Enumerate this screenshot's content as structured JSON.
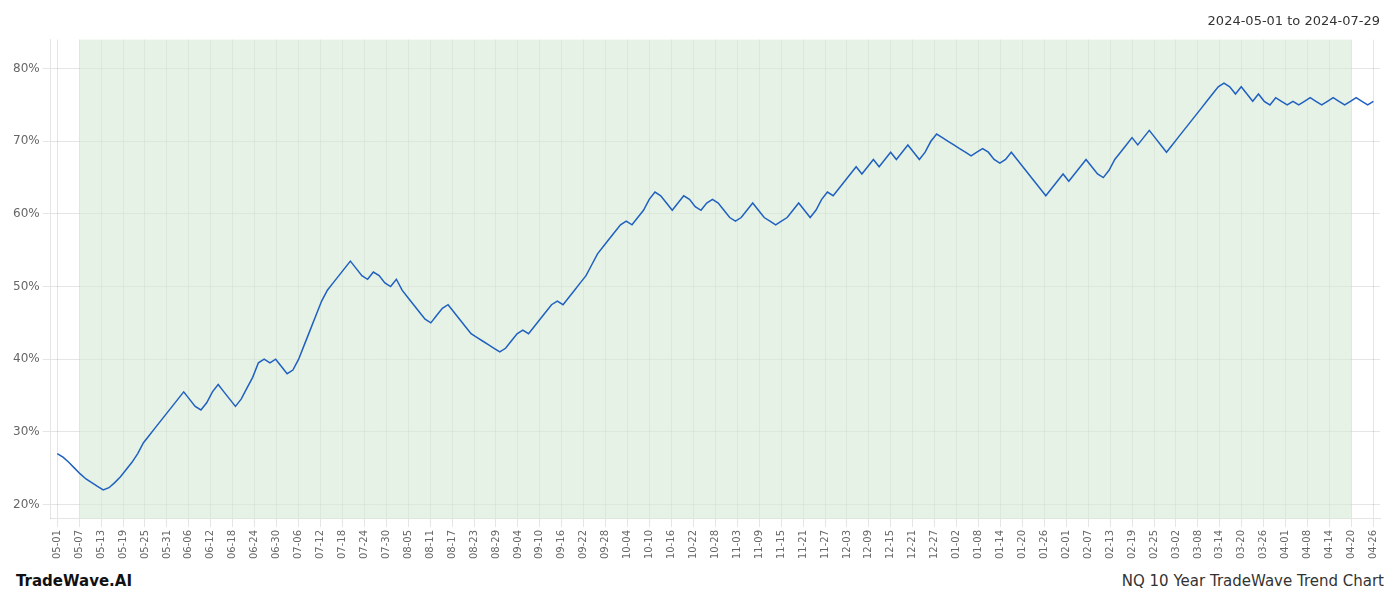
{
  "chart_data": {
    "type": "line",
    "title": "2024-05-01 to 2024-07-29",
    "annotations": [
      "TradeWave.AI",
      "NQ 10 Year TradeWave Trend Chart"
    ],
    "color": "#2060c0",
    "grid": true,
    "shade": {
      "from": 1,
      "to": 59,
      "color": "#d4ead4"
    },
    "xlim": [
      -0.3,
      60.3
    ],
    "xticks": [
      {
        "value": 0,
        "label": "05-01"
      },
      {
        "value": 1,
        "label": "05-07"
      },
      {
        "value": 2,
        "label": "05-13"
      },
      {
        "value": 3,
        "label": "05-19"
      },
      {
        "value": 4,
        "label": "05-25"
      },
      {
        "value": 5,
        "label": "05-31"
      },
      {
        "value": 6,
        "label": "06-06"
      },
      {
        "value": 7,
        "label": "06-12"
      },
      {
        "value": 8,
        "label": "06-18"
      },
      {
        "value": 9,
        "label": "06-24"
      },
      {
        "value": 10,
        "label": "06-30"
      },
      {
        "value": 11,
        "label": "07-06"
      },
      {
        "value": 12,
        "label": "07-12"
      },
      {
        "value": 13,
        "label": "07-18"
      },
      {
        "value": 14,
        "label": "07-24"
      },
      {
        "value": 15,
        "label": "07-30"
      },
      {
        "value": 16,
        "label": "08-05"
      },
      {
        "value": 17,
        "label": "08-11"
      },
      {
        "value": 18,
        "label": "08-17"
      },
      {
        "value": 19,
        "label": "08-23"
      },
      {
        "value": 20,
        "label": "08-29"
      },
      {
        "value": 21,
        "label": "09-04"
      },
      {
        "value": 22,
        "label": "09-10"
      },
      {
        "value": 23,
        "label": "09-16"
      },
      {
        "value": 24,
        "label": "09-22"
      },
      {
        "value": 25,
        "label": "09-28"
      },
      {
        "value": 26,
        "label": "10-04"
      },
      {
        "value": 27,
        "label": "10-10"
      },
      {
        "value": 28,
        "label": "10-16"
      },
      {
        "value": 29,
        "label": "10-22"
      },
      {
        "value": 30,
        "label": "10-28"
      },
      {
        "value": 31,
        "label": "11-03"
      },
      {
        "value": 32,
        "label": "11-09"
      },
      {
        "value": 33,
        "label": "11-15"
      },
      {
        "value": 34,
        "label": "11-21"
      },
      {
        "value": 35,
        "label": "11-27"
      },
      {
        "value": 36,
        "label": "12-03"
      },
      {
        "value": 37,
        "label": "12-09"
      },
      {
        "value": 38,
        "label": "12-15"
      },
      {
        "value": 39,
        "label": "12-21"
      },
      {
        "value": 40,
        "label": "12-27"
      },
      {
        "value": 41,
        "label": "01-02"
      },
      {
        "value": 42,
        "label": "01-08"
      },
      {
        "value": 43,
        "label": "01-14"
      },
      {
        "value": 44,
        "label": "01-20"
      },
      {
        "value": 45,
        "label": "01-26"
      },
      {
        "value": 46,
        "label": "02-01"
      },
      {
        "value": 47,
        "label": "02-07"
      },
      {
        "value": 48,
        "label": "02-13"
      },
      {
        "value": 49,
        "label": "02-19"
      },
      {
        "value": 50,
        "label": "02-25"
      },
      {
        "value": 51,
        "label": "03-02"
      },
      {
        "value": 52,
        "label": "03-08"
      },
      {
        "value": 53,
        "label": "03-14"
      },
      {
        "value": 54,
        "label": "03-20"
      },
      {
        "value": 55,
        "label": "03-26"
      },
      {
        "value": 56,
        "label": "04-01"
      },
      {
        "value": 57,
        "label": "04-08"
      },
      {
        "value": 58,
        "label": "04-14"
      },
      {
        "value": 59,
        "label": "04-20"
      },
      {
        "value": 60,
        "label": "04-26"
      }
    ],
    "ylim": [
      18,
      84
    ],
    "yticks": [
      {
        "value": 20,
        "label": "20%"
      },
      {
        "value": 30,
        "label": "30%"
      },
      {
        "value": 40,
        "label": "40%"
      },
      {
        "value": 50,
        "label": "50%"
      },
      {
        "value": 60,
        "label": "60%"
      },
      {
        "value": 70,
        "label": "70%"
      },
      {
        "value": 80,
        "label": "80%"
      }
    ],
    "x": [
      0,
      0.262,
      0.524,
      0.786,
      1.048,
      1.31,
      1.5721,
      1.8341,
      2.0961,
      2.3581,
      2.6201,
      2.8821,
      3.1441,
      3.4061,
      3.6681,
      3.9301,
      4.1921,
      4.4541,
      4.7162,
      4.9782,
      5.2402,
      5.5022,
      5.7642,
      6.0262,
      6.2882,
      6.5502,
      6.8122,
      7.0742,
      7.3362,
      7.5983,
      7.8603,
      8.1223,
      8.3843,
      8.6463,
      8.9083,
      9.1703,
      9.4323,
      9.6943,
      9.9563,
      10.2183,
      10.4803,
      10.7424,
      11.0044,
      11.2664,
      11.5284,
      11.7904,
      12.0524,
      12.3144,
      12.5764,
      12.8384,
      13.1004,
      13.3624,
      13.6245,
      13.8865,
      14.1485,
      14.4105,
      14.6725,
      14.9345,
      15.1965,
      15.4585,
      15.7205,
      15.9825,
      16.2445,
      16.5066,
      16.7686,
      17.0306,
      17.2926,
      17.5546,
      17.8166,
      18.0786,
      18.3406,
      18.6026,
      18.8646,
      19.1266,
      19.3886,
      19.6507,
      19.9127,
      20.1747,
      20.4367,
      20.6987,
      20.9607,
      21.2227,
      21.4847,
      21.7467,
      22.0087,
      22.2707,
      22.5328,
      22.7948,
      23.0568,
      23.3188,
      23.5808,
      23.8428,
      24.1048,
      24.3668,
      24.6288,
      24.8908,
      25.1528,
      25.4148,
      25.6769,
      25.9389,
      26.2009,
      26.4629,
      26.7249,
      26.9869,
      27.2489,
      27.5109,
      27.7729,
      28.0349,
      28.2969,
      28.559,
      28.821,
      29.083,
      29.345,
      29.607,
      29.869,
      30.131,
      30.393,
      30.655,
      30.917,
      31.179,
      31.441,
      31.7031,
      31.9651,
      32.2271,
      32.4891,
      32.7511,
      33.0131,
      33.2751,
      33.5371,
      33.7991,
      34.0611,
      34.3231,
      34.5852,
      34.8472,
      35.1092,
      35.3712,
      35.6332,
      35.8952,
      36.1572,
      36.4192,
      36.6812,
      36.9432,
      37.2052,
      37.4672,
      37.7293,
      37.9913,
      38.2533,
      38.5153,
      38.7773,
      39.0393,
      39.3013,
      39.5633,
      39.8253,
      40.0873,
      40.3493,
      40.6114,
      40.8734,
      41.1354,
      41.3974,
      41.6594,
      41.9214,
      42.1834,
      42.4454,
      42.7074,
      42.9694,
      43.2314,
      43.4934,
      43.7555,
      44.0175,
      44.2795,
      44.5415,
      44.8035,
      45.0655,
      45.3275,
      45.5895,
      45.8515,
      46.1135,
      46.3755,
      46.6376,
      46.8996,
      47.1616,
      47.4236,
      47.6856,
      47.9476,
      48.2096,
      48.4716,
      48.7336,
      48.9956,
      49.2576,
      49.5197,
      49.7817,
      50.0437,
      50.3057,
      50.5677,
      50.8297,
      51.0917,
      51.3537,
      51.6157,
      51.8777,
      52.1397,
      52.4017,
      52.6638,
      52.9258,
      53.1878,
      53.4498,
      53.7118,
      53.9738,
      54.2358,
      54.4978,
      54.7598,
      55.0218,
      55.2838,
      55.5459,
      55.8079,
      56.0699,
      56.3319,
      56.5939,
      56.8559,
      57.1179,
      57.3799,
      57.6419,
      57.9039,
      58.1659,
      58.4279,
      58.69,
      58.952,
      59.214,
      59.476,
      59.738,
      60
    ],
    "values": [
      27.0,
      26.5,
      25.8,
      25.0,
      24.2,
      23.5,
      23.0,
      22.5,
      22.0,
      22.3,
      23.0,
      23.8,
      24.8,
      25.8,
      27.0,
      28.5,
      29.5,
      30.5,
      31.5,
      32.5,
      33.5,
      34.5,
      35.5,
      34.5,
      33.5,
      33.0,
      34.0,
      35.5,
      36.5,
      35.5,
      34.5,
      33.5,
      34.5,
      36.0,
      37.5,
      39.5,
      40.0,
      39.5,
      40.0,
      39.0,
      38.0,
      38.5,
      40.0,
      42.0,
      44.0,
      46.0,
      48.0,
      49.5,
      50.5,
      51.5,
      52.5,
      53.5,
      52.5,
      51.5,
      51.0,
      52.0,
      51.5,
      50.5,
      50.0,
      51.0,
      49.5,
      48.5,
      47.5,
      46.5,
      45.5,
      45.0,
      46.0,
      47.0,
      47.5,
      46.5,
      45.5,
      44.5,
      43.5,
      43.0,
      42.5,
      42.0,
      41.5,
      41.0,
      41.5,
      42.5,
      43.5,
      44.0,
      43.5,
      44.5,
      45.5,
      46.5,
      47.5,
      48.0,
      47.5,
      48.5,
      49.5,
      50.5,
      51.5,
      53.0,
      54.5,
      55.5,
      56.5,
      57.5,
      58.5,
      59.0,
      58.5,
      59.5,
      60.5,
      62.0,
      63.0,
      62.5,
      61.5,
      60.5,
      61.5,
      62.5,
      62.0,
      61.0,
      60.5,
      61.5,
      62.0,
      61.5,
      60.5,
      59.5,
      59.0,
      59.5,
      60.5,
      61.5,
      60.5,
      59.5,
      59.0,
      58.5,
      59.0,
      59.5,
      60.5,
      61.5,
      60.5,
      59.5,
      60.5,
      62.0,
      63.0,
      62.5,
      63.5,
      64.5,
      65.5,
      66.5,
      65.5,
      66.5,
      67.5,
      66.5,
      67.5,
      68.5,
      67.5,
      68.5,
      69.5,
      68.5,
      67.5,
      68.5,
      70.0,
      71.0,
      70.5,
      70.0,
      69.5,
      69.0,
      68.5,
      68.0,
      68.5,
      69.0,
      68.5,
      67.5,
      67.0,
      67.5,
      68.5,
      67.5,
      66.5,
      65.5,
      64.5,
      63.5,
      62.5,
      63.5,
      64.5,
      65.5,
      64.5,
      65.5,
      66.5,
      67.5,
      66.5,
      65.5,
      65.0,
      66.0,
      67.5,
      68.5,
      69.5,
      70.5,
      69.5,
      70.5,
      71.5,
      70.5,
      69.5,
      68.5,
      69.5,
      70.5,
      71.5,
      72.5,
      73.5,
      74.5,
      75.5,
      76.5,
      77.5,
      78.0,
      77.5,
      76.5,
      77.5,
      76.5,
      75.5,
      76.5,
      75.5,
      75.0,
      76.0,
      75.5,
      75.0,
      75.5,
      75.0,
      75.5,
      76.0,
      75.5,
      75.0,
      75.5,
      76.0,
      75.5,
      75.0,
      75.5,
      76.0,
      75.5,
      75.0,
      75.5
    ]
  }
}
